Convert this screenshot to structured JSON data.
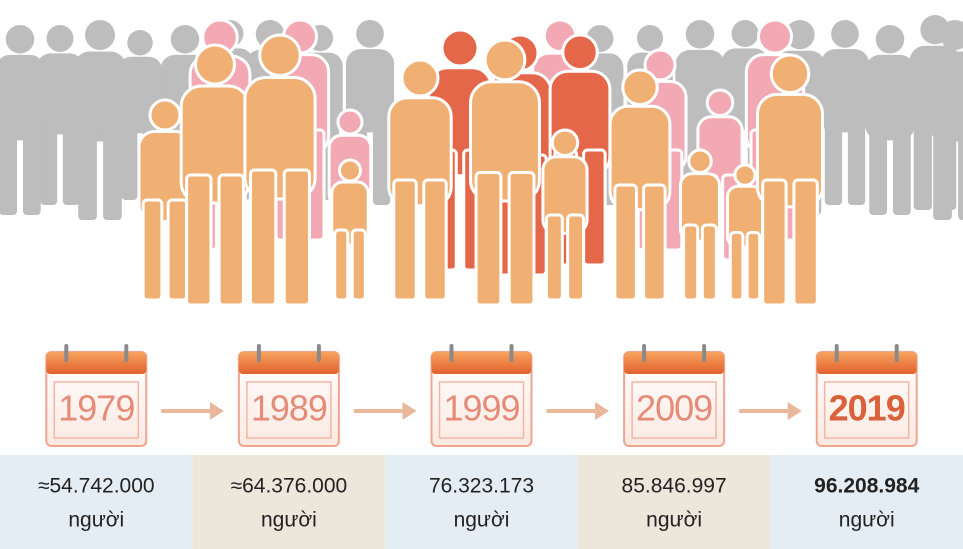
{
  "items": [
    {
      "year": "1979",
      "population": "≈54.742.000",
      "unit": "người"
    },
    {
      "year": "1989",
      "population": "≈64.376.000",
      "unit": "người"
    },
    {
      "year": "1999",
      "population": "76.323.173",
      "unit": "người"
    },
    {
      "year": "2009",
      "population": "85.846.997",
      "unit": "người"
    },
    {
      "year": "2019",
      "population": "96.208.984",
      "unit": "người"
    }
  ]
}
